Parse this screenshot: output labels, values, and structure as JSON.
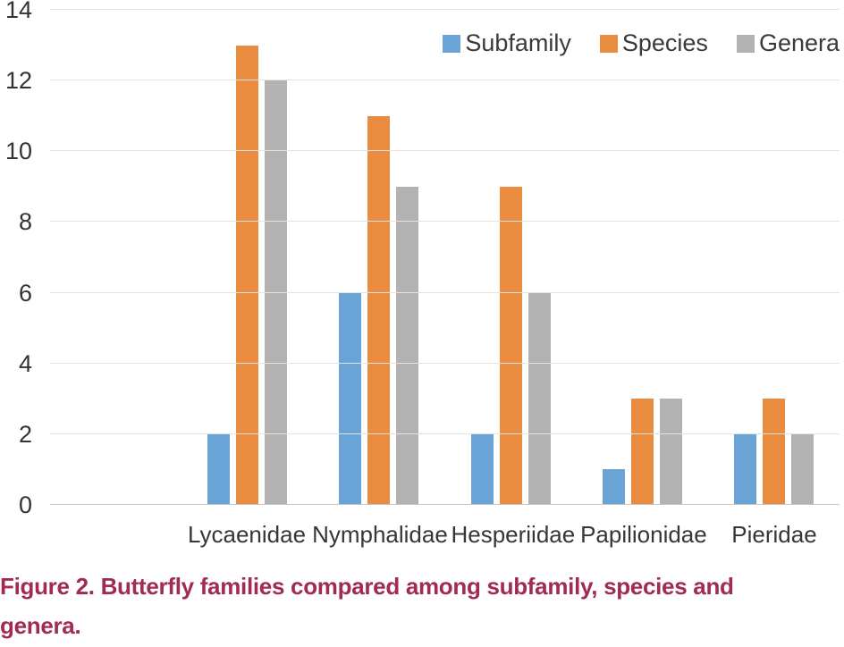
{
  "chart_data": {
    "type": "bar",
    "title": "",
    "xlabel": "",
    "ylabel": "",
    "categories": [
      "Lycaenidae",
      "Nymphalidae",
      "Hesperiidae",
      "Papilionidae",
      "Pieridae"
    ],
    "series": [
      {
        "name": "Subfamily",
        "color": "#6AA3D6",
        "values": [
          2,
          6,
          2,
          1,
          2
        ]
      },
      {
        "name": "Species",
        "color": "#EA8C40",
        "values": [
          13,
          11,
          9,
          3,
          3
        ]
      },
      {
        "name": "Genera",
        "color": "#B2B2B2",
        "values": [
          12,
          9,
          6,
          3,
          2
        ]
      }
    ],
    "ylim": [
      0,
      14
    ],
    "yticks": [
      0,
      2,
      4,
      6,
      8,
      10,
      12,
      14
    ],
    "grid": "horizontal",
    "gridline_color": "#e2e2e2",
    "axis_line_color": "#c9c9c9",
    "tick_label_color": "#333333",
    "legend_position": "top-right"
  },
  "caption": {
    "line1": "Figure 2. Butterfly families compared among subfamily, species and",
    "line2": "genera.",
    "color": "#A22A56"
  }
}
